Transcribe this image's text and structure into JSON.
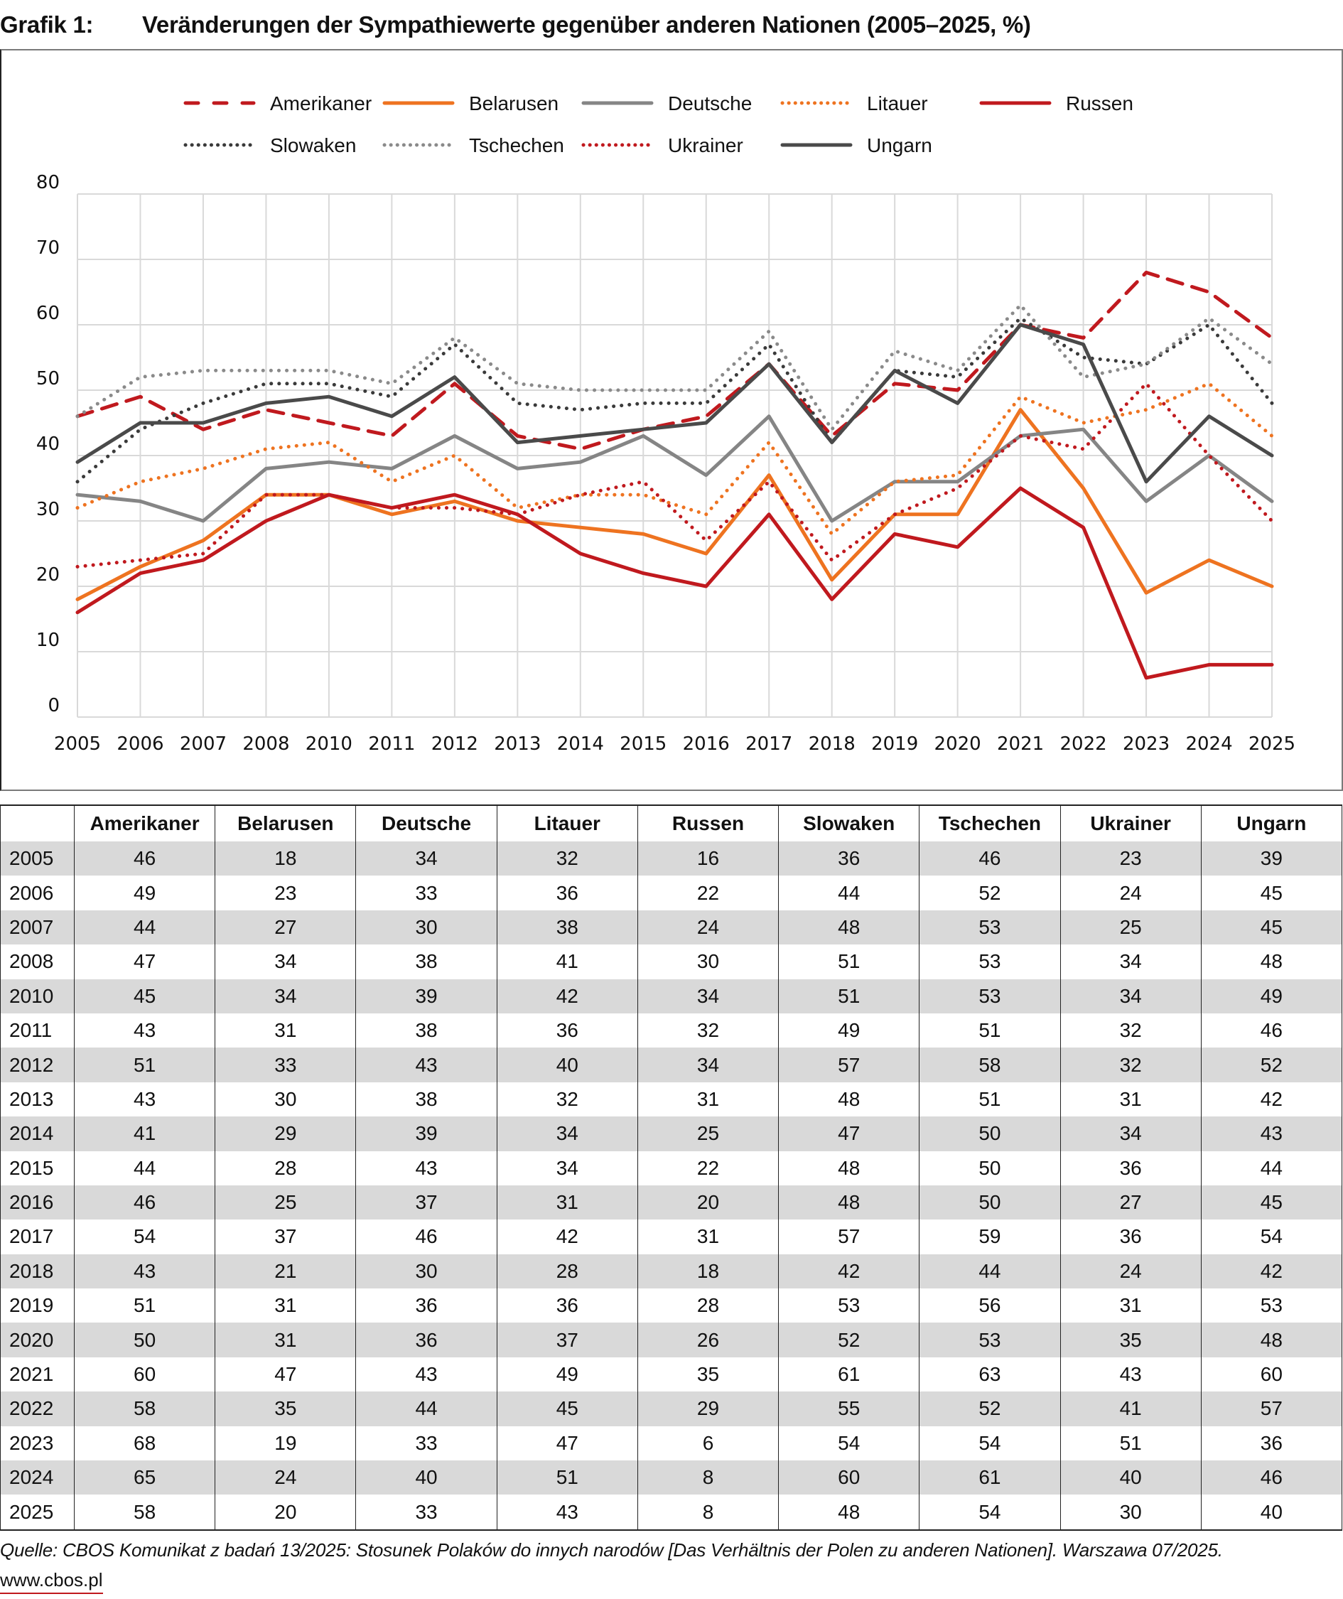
{
  "title": {
    "label": "Grafik 1:",
    "text": "Veränderungen der Sympathiewerte gegenüber anderen Nationen (2005–2025, %)"
  },
  "chart_data": {
    "type": "line",
    "title": "Veränderungen der Sympathiewerte gegenüber anderen Nationen (2005–2025, %)",
    "xlabel": "",
    "ylabel": "",
    "ylim": [
      0,
      80
    ],
    "yticks": [
      0,
      10,
      20,
      30,
      40,
      50,
      60,
      70,
      80
    ],
    "grid": true,
    "legend_position": "top",
    "categories": [
      "2005",
      "2006",
      "2007",
      "2008",
      "2010",
      "2011",
      "2012",
      "2013",
      "2014",
      "2015",
      "2016",
      "2017",
      "2018",
      "2019",
      "2020",
      "2021",
      "2022",
      "2023",
      "2024",
      "2025"
    ],
    "series": [
      {
        "name": "Amerikaner",
        "color": "#c0191e",
        "style": "dashed",
        "values": [
          46,
          49,
          44,
          47,
          45,
          43,
          51,
          43,
          41,
          44,
          46,
          54,
          43,
          51,
          50,
          60,
          58,
          68,
          65,
          58
        ]
      },
      {
        "name": "Belarusen",
        "color": "#ee7320",
        "style": "solid",
        "values": [
          18,
          23,
          27,
          34,
          34,
          31,
          33,
          30,
          29,
          28,
          25,
          37,
          21,
          31,
          31,
          47,
          35,
          19,
          24,
          20
        ]
      },
      {
        "name": "Deutsche",
        "color": "#858585",
        "style": "solid",
        "values": [
          34,
          33,
          30,
          38,
          39,
          38,
          43,
          38,
          39,
          43,
          37,
          46,
          30,
          36,
          36,
          43,
          44,
          33,
          40,
          33
        ]
      },
      {
        "name": "Litauer",
        "color": "#ee7320",
        "style": "dotted",
        "values": [
          32,
          36,
          38,
          41,
          42,
          36,
          40,
          32,
          34,
          34,
          31,
          42,
          28,
          36,
          37,
          49,
          45,
          47,
          51,
          43
        ]
      },
      {
        "name": "Russen",
        "color": "#c0191e",
        "style": "solid",
        "values": [
          16,
          22,
          24,
          30,
          34,
          32,
          34,
          31,
          25,
          22,
          20,
          31,
          18,
          28,
          26,
          35,
          29,
          6,
          8,
          8
        ]
      },
      {
        "name": "Slowaken",
        "color": "#3a3a3a",
        "style": "dotted",
        "values": [
          36,
          44,
          48,
          51,
          51,
          49,
          57,
          48,
          47,
          48,
          48,
          57,
          42,
          53,
          52,
          61,
          55,
          54,
          60,
          48
        ]
      },
      {
        "name": "Tschechen",
        "color": "#8a8a8a",
        "style": "dotted",
        "values": [
          46,
          52,
          53,
          53,
          53,
          51,
          58,
          51,
          50,
          50,
          50,
          59,
          44,
          56,
          53,
          63,
          52,
          54,
          61,
          54
        ]
      },
      {
        "name": "Ukrainer",
        "color": "#c0191e",
        "style": "dotted",
        "values": [
          23,
          24,
          25,
          34,
          34,
          32,
          32,
          31,
          34,
          36,
          27,
          36,
          24,
          31,
          35,
          43,
          41,
          51,
          40,
          30
        ]
      },
      {
        "name": "Ungarn",
        "color": "#4a4a4a",
        "style": "solid",
        "values": [
          39,
          45,
          45,
          48,
          49,
          46,
          52,
          42,
          43,
          44,
          45,
          54,
          42,
          53,
          48,
          60,
          57,
          36,
          46,
          40
        ]
      }
    ]
  },
  "table": {
    "headers": [
      "",
      "Amerikaner",
      "Belarusen",
      "Deutsche",
      "Litauer",
      "Russen",
      "Slowaken",
      "Tschechen",
      "Ukrainer",
      "Ungarn"
    ],
    "rows": [
      [
        "2005",
        "46",
        "18",
        "34",
        "32",
        "16",
        "36",
        "46",
        "23",
        "39"
      ],
      [
        "2006",
        "49",
        "23",
        "33",
        "36",
        "22",
        "44",
        "52",
        "24",
        "45"
      ],
      [
        "2007",
        "44",
        "27",
        "30",
        "38",
        "24",
        "48",
        "53",
        "25",
        "45"
      ],
      [
        "2008",
        "47",
        "34",
        "38",
        "41",
        "30",
        "51",
        "53",
        "34",
        "48"
      ],
      [
        "2010",
        "45",
        "34",
        "39",
        "42",
        "34",
        "51",
        "53",
        "34",
        "49"
      ],
      [
        "2011",
        "43",
        "31",
        "38",
        "36",
        "32",
        "49",
        "51",
        "32",
        "46"
      ],
      [
        "2012",
        "51",
        "33",
        "43",
        "40",
        "34",
        "57",
        "58",
        "32",
        "52"
      ],
      [
        "2013",
        "43",
        "30",
        "38",
        "32",
        "31",
        "48",
        "51",
        "31",
        "42"
      ],
      [
        "2014",
        "41",
        "29",
        "39",
        "34",
        "25",
        "47",
        "50",
        "34",
        "43"
      ],
      [
        "2015",
        "44",
        "28",
        "43",
        "34",
        "22",
        "48",
        "50",
        "36",
        "44"
      ],
      [
        "2016",
        "46",
        "25",
        "37",
        "31",
        "20",
        "48",
        "50",
        "27",
        "45"
      ],
      [
        "2017",
        "54",
        "37",
        "46",
        "42",
        "31",
        "57",
        "59",
        "36",
        "54"
      ],
      [
        "2018",
        "43",
        "21",
        "30",
        "28",
        "18",
        "42",
        "44",
        "24",
        "42"
      ],
      [
        "2019",
        "51",
        "31",
        "36",
        "36",
        "28",
        "53",
        "56",
        "31",
        "53"
      ],
      [
        "2020",
        "50",
        "31",
        "36",
        "37",
        "26",
        "52",
        "53",
        "35",
        "48"
      ],
      [
        "2021",
        "60",
        "47",
        "43",
        "49",
        "35",
        "61",
        "63",
        "43",
        "60"
      ],
      [
        "2022",
        "58",
        "35",
        "44",
        "45",
        "29",
        "55",
        "52",
        "41",
        "57"
      ],
      [
        "2023",
        "68",
        "19",
        "33",
        "47",
        "6",
        "54",
        "54",
        "51",
        "36"
      ],
      [
        "2024",
        "65",
        "24",
        "40",
        "51",
        "8",
        "60",
        "61",
        "40",
        "46"
      ],
      [
        "2025",
        "58",
        "20",
        "33",
        "43",
        "8",
        "48",
        "54",
        "30",
        "40"
      ]
    ]
  },
  "footer": {
    "source": "Quelle: CBOS Komunikat z badań 13/2025: Stosunek Polaków do innych narodów [Das Verhältnis der Polen zu anderen Nationen]. Warszawa 07/2025.",
    "website": "www.cbos.pl"
  }
}
